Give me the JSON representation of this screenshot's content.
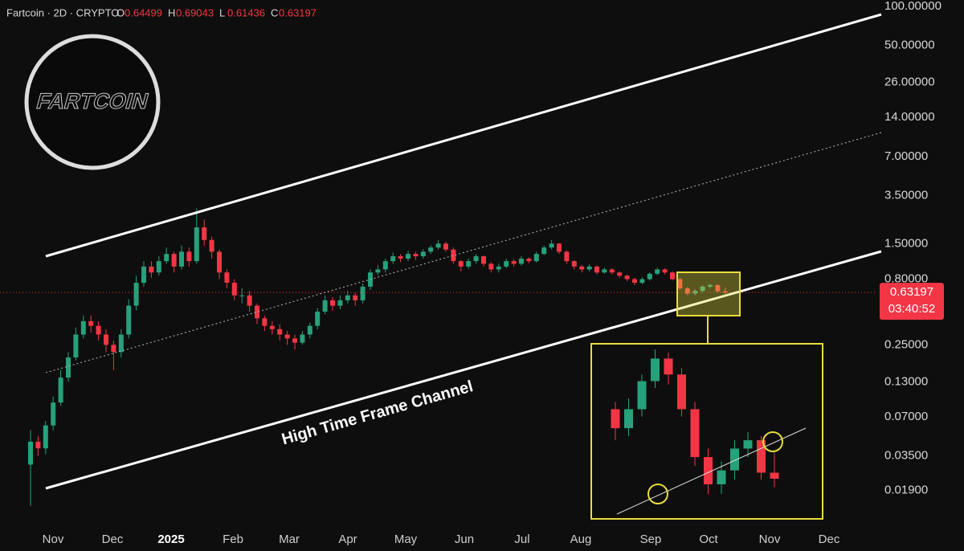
{
  "chart_data": {
    "type": "candlestick",
    "title": "Fartcoin · 2D · CRYPTO",
    "ohlc_letters": [
      "O",
      "H",
      "L",
      "C"
    ],
    "logo_text": "FARTCOIN",
    "annotation": "High Time Frame Channel",
    "countdown": "03:40:52",
    "log_scale": true,
    "grid": false,
    "up_color": "#26a17b",
    "down_color": "#f23645",
    "xlabels": [
      "Nov",
      "Dec",
      "2025",
      "Feb",
      "Mar",
      "Apr",
      "May",
      "Jun",
      "Jul",
      "Aug",
      "Sep",
      "Oct",
      "Nov",
      "Dec"
    ],
    "ylim": [
      0.0101,
      112
    ],
    "yticks": [
      {
        "value": 100,
        "label": "100.00000"
      },
      {
        "value": 50,
        "label": "50.00000"
      },
      {
        "value": 26,
        "label": "26.00000"
      },
      {
        "value": 14,
        "label": "14.00000"
      },
      {
        "value": 7,
        "label": "7.00000"
      },
      {
        "value": 3.5,
        "label": "3.50000"
      },
      {
        "value": 1.5,
        "label": "1.50000"
      },
      {
        "value": 0.8,
        "label": "0.80000"
      },
      {
        "value": 0.25,
        "label": "0.25000"
      },
      {
        "value": 0.13,
        "label": "0.13000"
      },
      {
        "value": 0.07,
        "label": "0.07000"
      },
      {
        "value": 0.035,
        "label": "0.03500"
      },
      {
        "value": 0.019,
        "label": "0.01900"
      }
    ],
    "candles": {
      "open": [
        0.03,
        0.045,
        0.04,
        0.06,
        0.09,
        0.14,
        0.2,
        0.3,
        0.38,
        0.35,
        0.3,
        0.25,
        0.22,
        0.3,
        0.5,
        0.75,
        1.0,
        0.9,
        1.1,
        1.25,
        1.0,
        1.3,
        1.1,
        2.0,
        1.6,
        1.3,
        0.9,
        0.75,
        0.6,
        0.6,
        0.5,
        0.4,
        0.35,
        0.33,
        0.3,
        0.28,
        0.26,
        0.3,
        0.35,
        0.45,
        0.55,
        0.5,
        0.55,
        0.6,
        0.55,
        0.7,
        0.9,
        0.95,
        1.1,
        1.2,
        1.15,
        1.25,
        1.2,
        1.3,
        1.4,
        1.5,
        1.35,
        1.1,
        1.0,
        1.1,
        1.2,
        1.05,
        0.95,
        1.0,
        1.1,
        1.05,
        1.15,
        1.1,
        1.25,
        1.4,
        1.5,
        1.3,
        1.1,
        1.0,
        0.95,
        1.0,
        0.9,
        0.95,
        0.9,
        0.85,
        0.8,
        0.75,
        0.8,
        0.88,
        0.95,
        0.9,
        0.8,
        0.68,
        0.62,
        0.65,
        0.7,
        0.72,
        0.64499
      ],
      "high": [
        0.055,
        0.05,
        0.065,
        0.1,
        0.16,
        0.22,
        0.34,
        0.42,
        0.42,
        0.38,
        0.33,
        0.27,
        0.33,
        0.56,
        0.85,
        1.1,
        1.1,
        1.2,
        1.4,
        1.3,
        1.45,
        1.4,
        2.8,
        2.3,
        1.7,
        1.35,
        0.95,
        0.8,
        0.68,
        0.65,
        0.52,
        0.42,
        0.38,
        0.36,
        0.32,
        0.3,
        0.32,
        0.37,
        0.48,
        0.6,
        0.58,
        0.6,
        0.65,
        0.63,
        0.74,
        0.95,
        1.02,
        1.15,
        1.28,
        1.25,
        1.32,
        1.3,
        1.36,
        1.45,
        1.6,
        1.55,
        1.4,
        1.12,
        1.15,
        1.25,
        1.22,
        1.08,
        1.05,
        1.15,
        1.14,
        1.2,
        1.18,
        1.3,
        1.45,
        1.6,
        1.52,
        1.33,
        1.12,
        1.03,
        1.04,
        1.02,
        0.98,
        0.97,
        0.92,
        0.87,
        0.82,
        0.83,
        0.9,
        0.98,
        0.97,
        0.92,
        0.82,
        0.7,
        0.67,
        0.72,
        0.74,
        0.73,
        0.69043
      ],
      "low": [
        0.0145,
        0.035,
        0.036,
        0.055,
        0.085,
        0.13,
        0.19,
        0.28,
        0.31,
        0.27,
        0.22,
        0.16,
        0.2,
        0.28,
        0.46,
        0.7,
        0.82,
        0.85,
        1.05,
        0.9,
        0.95,
        1.0,
        1.05,
        1.45,
        1.15,
        0.8,
        0.68,
        0.55,
        0.52,
        0.45,
        0.36,
        0.32,
        0.3,
        0.27,
        0.25,
        0.23,
        0.25,
        0.28,
        0.33,
        0.43,
        0.46,
        0.47,
        0.52,
        0.5,
        0.52,
        0.66,
        0.86,
        0.9,
        1.05,
        1.08,
        1.1,
        1.12,
        1.15,
        1.25,
        1.35,
        1.3,
        1.05,
        0.92,
        0.96,
        1.05,
        1.0,
        0.9,
        0.9,
        0.97,
        1.0,
        1.02,
        1.06,
        1.07,
        1.22,
        1.35,
        1.25,
        1.05,
        0.95,
        0.9,
        0.92,
        0.87,
        0.88,
        0.87,
        0.82,
        0.77,
        0.72,
        0.73,
        0.78,
        0.86,
        0.87,
        0.78,
        0.66,
        0.6,
        0.6,
        0.63,
        0.68,
        0.63,
        0.61436
      ],
      "close": [
        0.045,
        0.04,
        0.06,
        0.09,
        0.14,
        0.2,
        0.3,
        0.38,
        0.35,
        0.3,
        0.25,
        0.22,
        0.3,
        0.5,
        0.75,
        1.0,
        0.9,
        1.1,
        1.25,
        1.0,
        1.3,
        1.1,
        2.0,
        1.6,
        1.3,
        0.9,
        0.75,
        0.6,
        0.6,
        0.5,
        0.4,
        0.35,
        0.33,
        0.3,
        0.28,
        0.26,
        0.3,
        0.35,
        0.45,
        0.55,
        0.5,
        0.55,
        0.6,
        0.55,
        0.7,
        0.9,
        0.95,
        1.1,
        1.2,
        1.15,
        1.25,
        1.2,
        1.3,
        1.4,
        1.5,
        1.35,
        1.1,
        1.0,
        1.1,
        1.2,
        1.05,
        0.95,
        1.0,
        1.1,
        1.05,
        1.15,
        1.1,
        1.25,
        1.4,
        1.5,
        1.3,
        1.1,
        1.0,
        0.95,
        1.0,
        0.9,
        0.95,
        0.9,
        0.85,
        0.8,
        0.75,
        0.8,
        0.88,
        0.95,
        0.9,
        0.8,
        0.68,
        0.62,
        0.65,
        0.7,
        0.72,
        0.645,
        0.63197
      ]
    }
  }
}
